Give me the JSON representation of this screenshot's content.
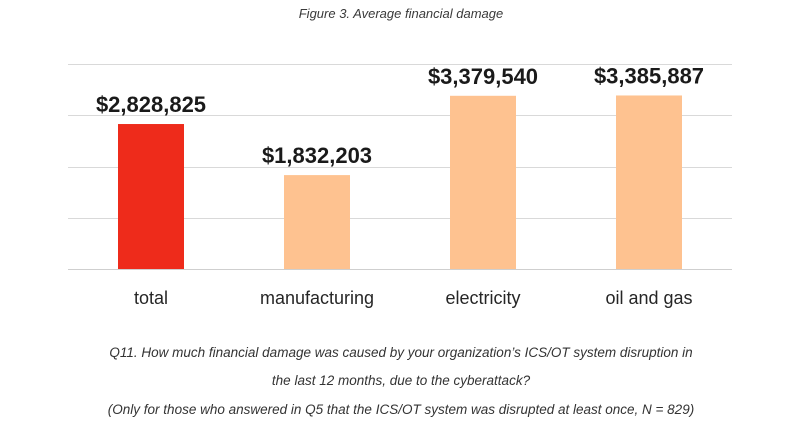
{
  "chart_data": {
    "type": "bar",
    "title": "Figure 3. Average financial damage",
    "categories": [
      "total",
      "manufacturing",
      "electricity",
      "oil and gas"
    ],
    "values": [
      2828825,
      1832203,
      3379540,
      3385887
    ],
    "value_labels": [
      "$2,828,825",
      "$1,832,203",
      "$3,379,540",
      "$3,385,887"
    ],
    "ylim": [
      0,
      4000000
    ],
    "grid": true,
    "colors": [
      "#ee2b1b",
      "#fec290",
      "#fec290",
      "#fec290"
    ]
  },
  "caption": {
    "line1": "Q11. How much financial damage was caused by your organization’s ICS/OT system disruption in",
    "line2": "the last 12 months, due to the cyberattack?",
    "line3": "(Only for those who answered in Q5 that the ICS/OT system was disrupted at least once, N = 829)"
  }
}
